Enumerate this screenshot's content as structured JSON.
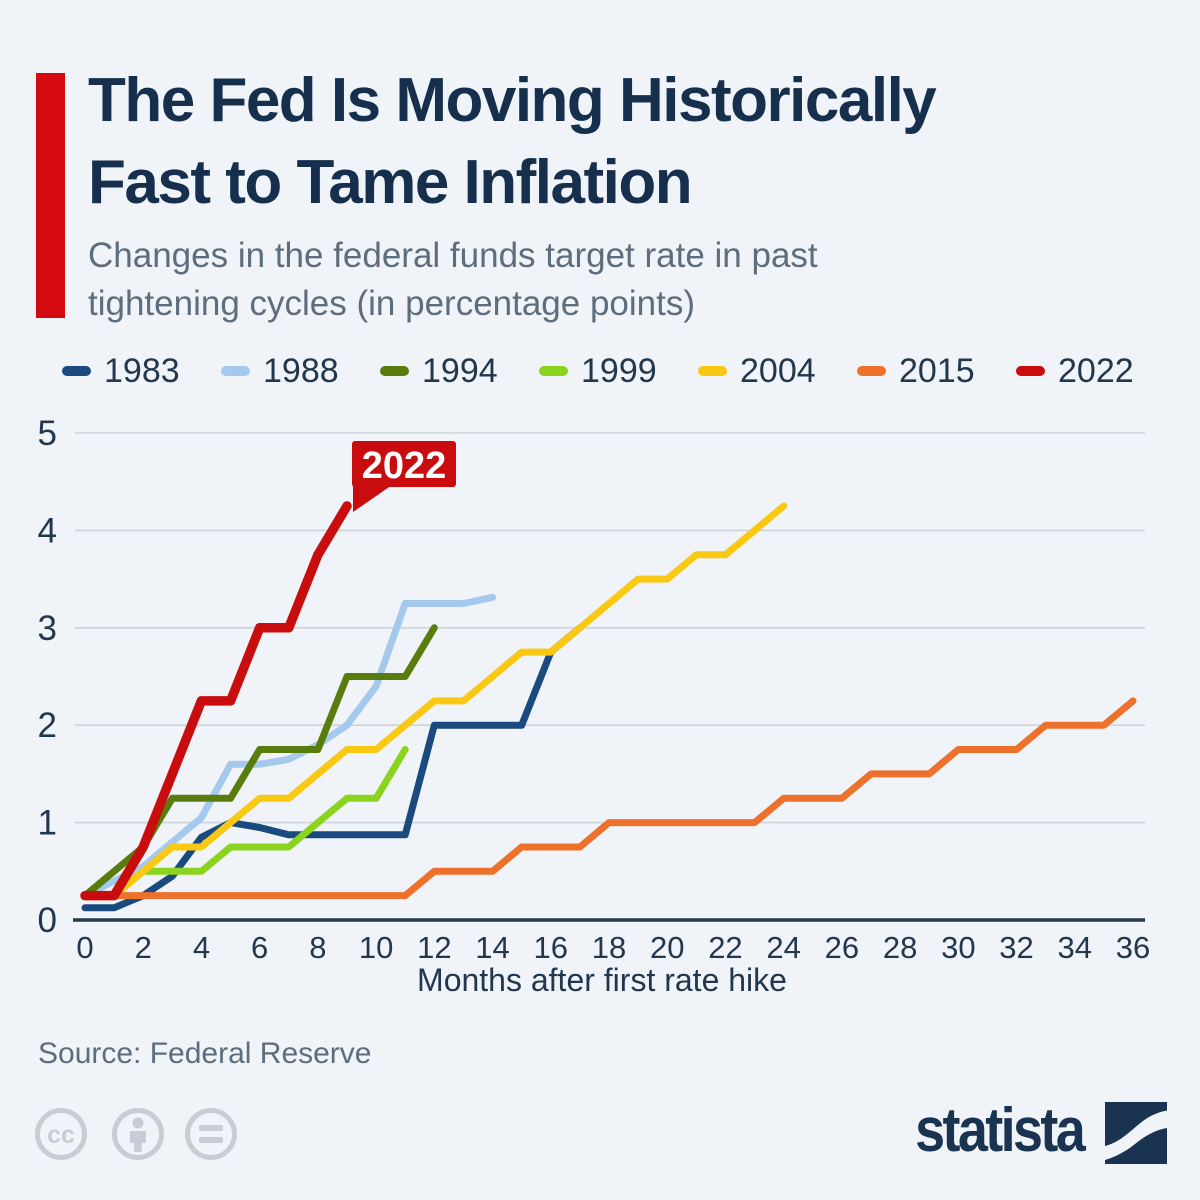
{
  "header": {
    "title_line1": "The Fed Is Moving Historically",
    "title_line2": "Fast to Tame Inflation",
    "subtitle_line1": "Changes in the federal funds target rate in past",
    "subtitle_line2": "tightening cycles (in percentage points)"
  },
  "footer": {
    "source": "Source: Federal Reserve",
    "logo_text": "statista",
    "cc_icons": [
      "cc-icon",
      "attribution-person-icon",
      "equals-icon"
    ]
  },
  "colors": {
    "background": "#f0f4f8",
    "title_text": "#152f4d",
    "subtitle_text": "#5d6d7e",
    "axis_text": "#22374e",
    "gridline": "#ccd3db",
    "axis_line": "#25384d",
    "accent_bar": "#d50a11",
    "source_text": "#5d6d7e",
    "cc_gray": "#c6cdd6",
    "statista_navy": "#1a3350"
  },
  "chart_data": {
    "type": "line",
    "title": "Changes in the federal funds target rate in past tightening cycles (in percentage points)",
    "xlabel": "Months after first rate hike",
    "ylabel": "",
    "xlim": [
      0,
      36
    ],
    "ylim": [
      0,
      5
    ],
    "x_ticks": [
      0,
      2,
      4,
      6,
      8,
      10,
      12,
      14,
      16,
      18,
      20,
      22,
      24,
      26,
      28,
      30,
      32,
      34,
      36
    ],
    "y_ticks": [
      0,
      1,
      2,
      3,
      4,
      5
    ],
    "grid": true,
    "legend_position": "top",
    "annotation": {
      "text": "2022",
      "x": 9,
      "y": 4.25
    },
    "series": [
      {
        "name": "1983",
        "color": "#1b4b7e",
        "width": 7,
        "x": [
          0,
          1,
          2,
          3,
          4,
          5,
          6,
          7,
          8,
          9,
          10,
          11,
          12,
          13,
          14,
          15,
          16,
          17
        ],
        "values": [
          0.125,
          0.125,
          0.25,
          0.45,
          0.85,
          1.0,
          0.95,
          0.875,
          0.875,
          0.875,
          0.875,
          0.875,
          2.0,
          2.0,
          2.0,
          2.0,
          2.75,
          3.0
        ]
      },
      {
        "name": "1988",
        "color": "#a5c9ed",
        "width": 7,
        "x": [
          0,
          1,
          2,
          3,
          4,
          5,
          6,
          7,
          8,
          9,
          10,
          11,
          12,
          13,
          14
        ],
        "values": [
          0.25,
          0.4,
          0.55,
          0.8,
          1.05,
          1.6,
          1.6,
          1.65,
          1.8,
          2.0,
          2.4,
          3.25,
          3.25,
          3.25,
          3.3125
        ]
      },
      {
        "name": "1994",
        "color": "#597d0d",
        "width": 7,
        "x": [
          0,
          1,
          2,
          3,
          4,
          5,
          6,
          7,
          8,
          9,
          10,
          11,
          12
        ],
        "values": [
          0.25,
          0.5,
          0.75,
          1.25,
          1.25,
          1.25,
          1.75,
          1.75,
          1.75,
          2.5,
          2.5,
          2.5,
          3.0
        ]
      },
      {
        "name": "1999",
        "color": "#8ad41f",
        "width": 7,
        "x": [
          0,
          1,
          2,
          3,
          4,
          5,
          6,
          7,
          8,
          9,
          10,
          11
        ],
        "values": [
          0.25,
          0.25,
          0.5,
          0.5,
          0.5,
          0.75,
          0.75,
          0.75,
          1.0,
          1.25,
          1.25,
          1.75
        ]
      },
      {
        "name": "2004",
        "color": "#f9c813",
        "width": 7,
        "x": [
          0,
          1,
          2,
          3,
          4,
          5,
          6,
          7,
          8,
          9,
          10,
          11,
          12,
          13,
          14,
          15,
          16,
          17,
          18,
          19,
          20,
          21,
          22,
          23,
          24
        ],
        "values": [
          0.25,
          0.25,
          0.5,
          0.75,
          0.75,
          1.0,
          1.25,
          1.25,
          1.5,
          1.75,
          1.75,
          2.0,
          2.25,
          2.25,
          2.5,
          2.75,
          2.75,
          3.0,
          3.25,
          3.5,
          3.5,
          3.75,
          3.75,
          4.0,
          4.25
        ]
      },
      {
        "name": "2015",
        "color": "#ed702b",
        "width": 7,
        "x": [
          0,
          1,
          2,
          3,
          4,
          5,
          6,
          7,
          8,
          9,
          10,
          11,
          12,
          13,
          14,
          15,
          16,
          17,
          18,
          19,
          20,
          21,
          22,
          23,
          24,
          25,
          26,
          27,
          28,
          29,
          30,
          31,
          32,
          33,
          34,
          35,
          36
        ],
        "values": [
          0.25,
          0.25,
          0.25,
          0.25,
          0.25,
          0.25,
          0.25,
          0.25,
          0.25,
          0.25,
          0.25,
          0.25,
          0.5,
          0.5,
          0.5,
          0.75,
          0.75,
          0.75,
          1.0,
          1.0,
          1.0,
          1.0,
          1.0,
          1.0,
          1.25,
          1.25,
          1.25,
          1.5,
          1.5,
          1.5,
          1.75,
          1.75,
          1.75,
          2.0,
          2.0,
          2.0,
          2.25
        ]
      },
      {
        "name": "2022",
        "color": "#c90d0e",
        "width": 9.5,
        "x": [
          0,
          1,
          2,
          3,
          4,
          5,
          6,
          7,
          8,
          9
        ],
        "values": [
          0.25,
          0.25,
          0.75,
          1.5,
          2.25,
          2.25,
          3.0,
          3.0,
          3.75,
          4.25
        ]
      }
    ]
  }
}
